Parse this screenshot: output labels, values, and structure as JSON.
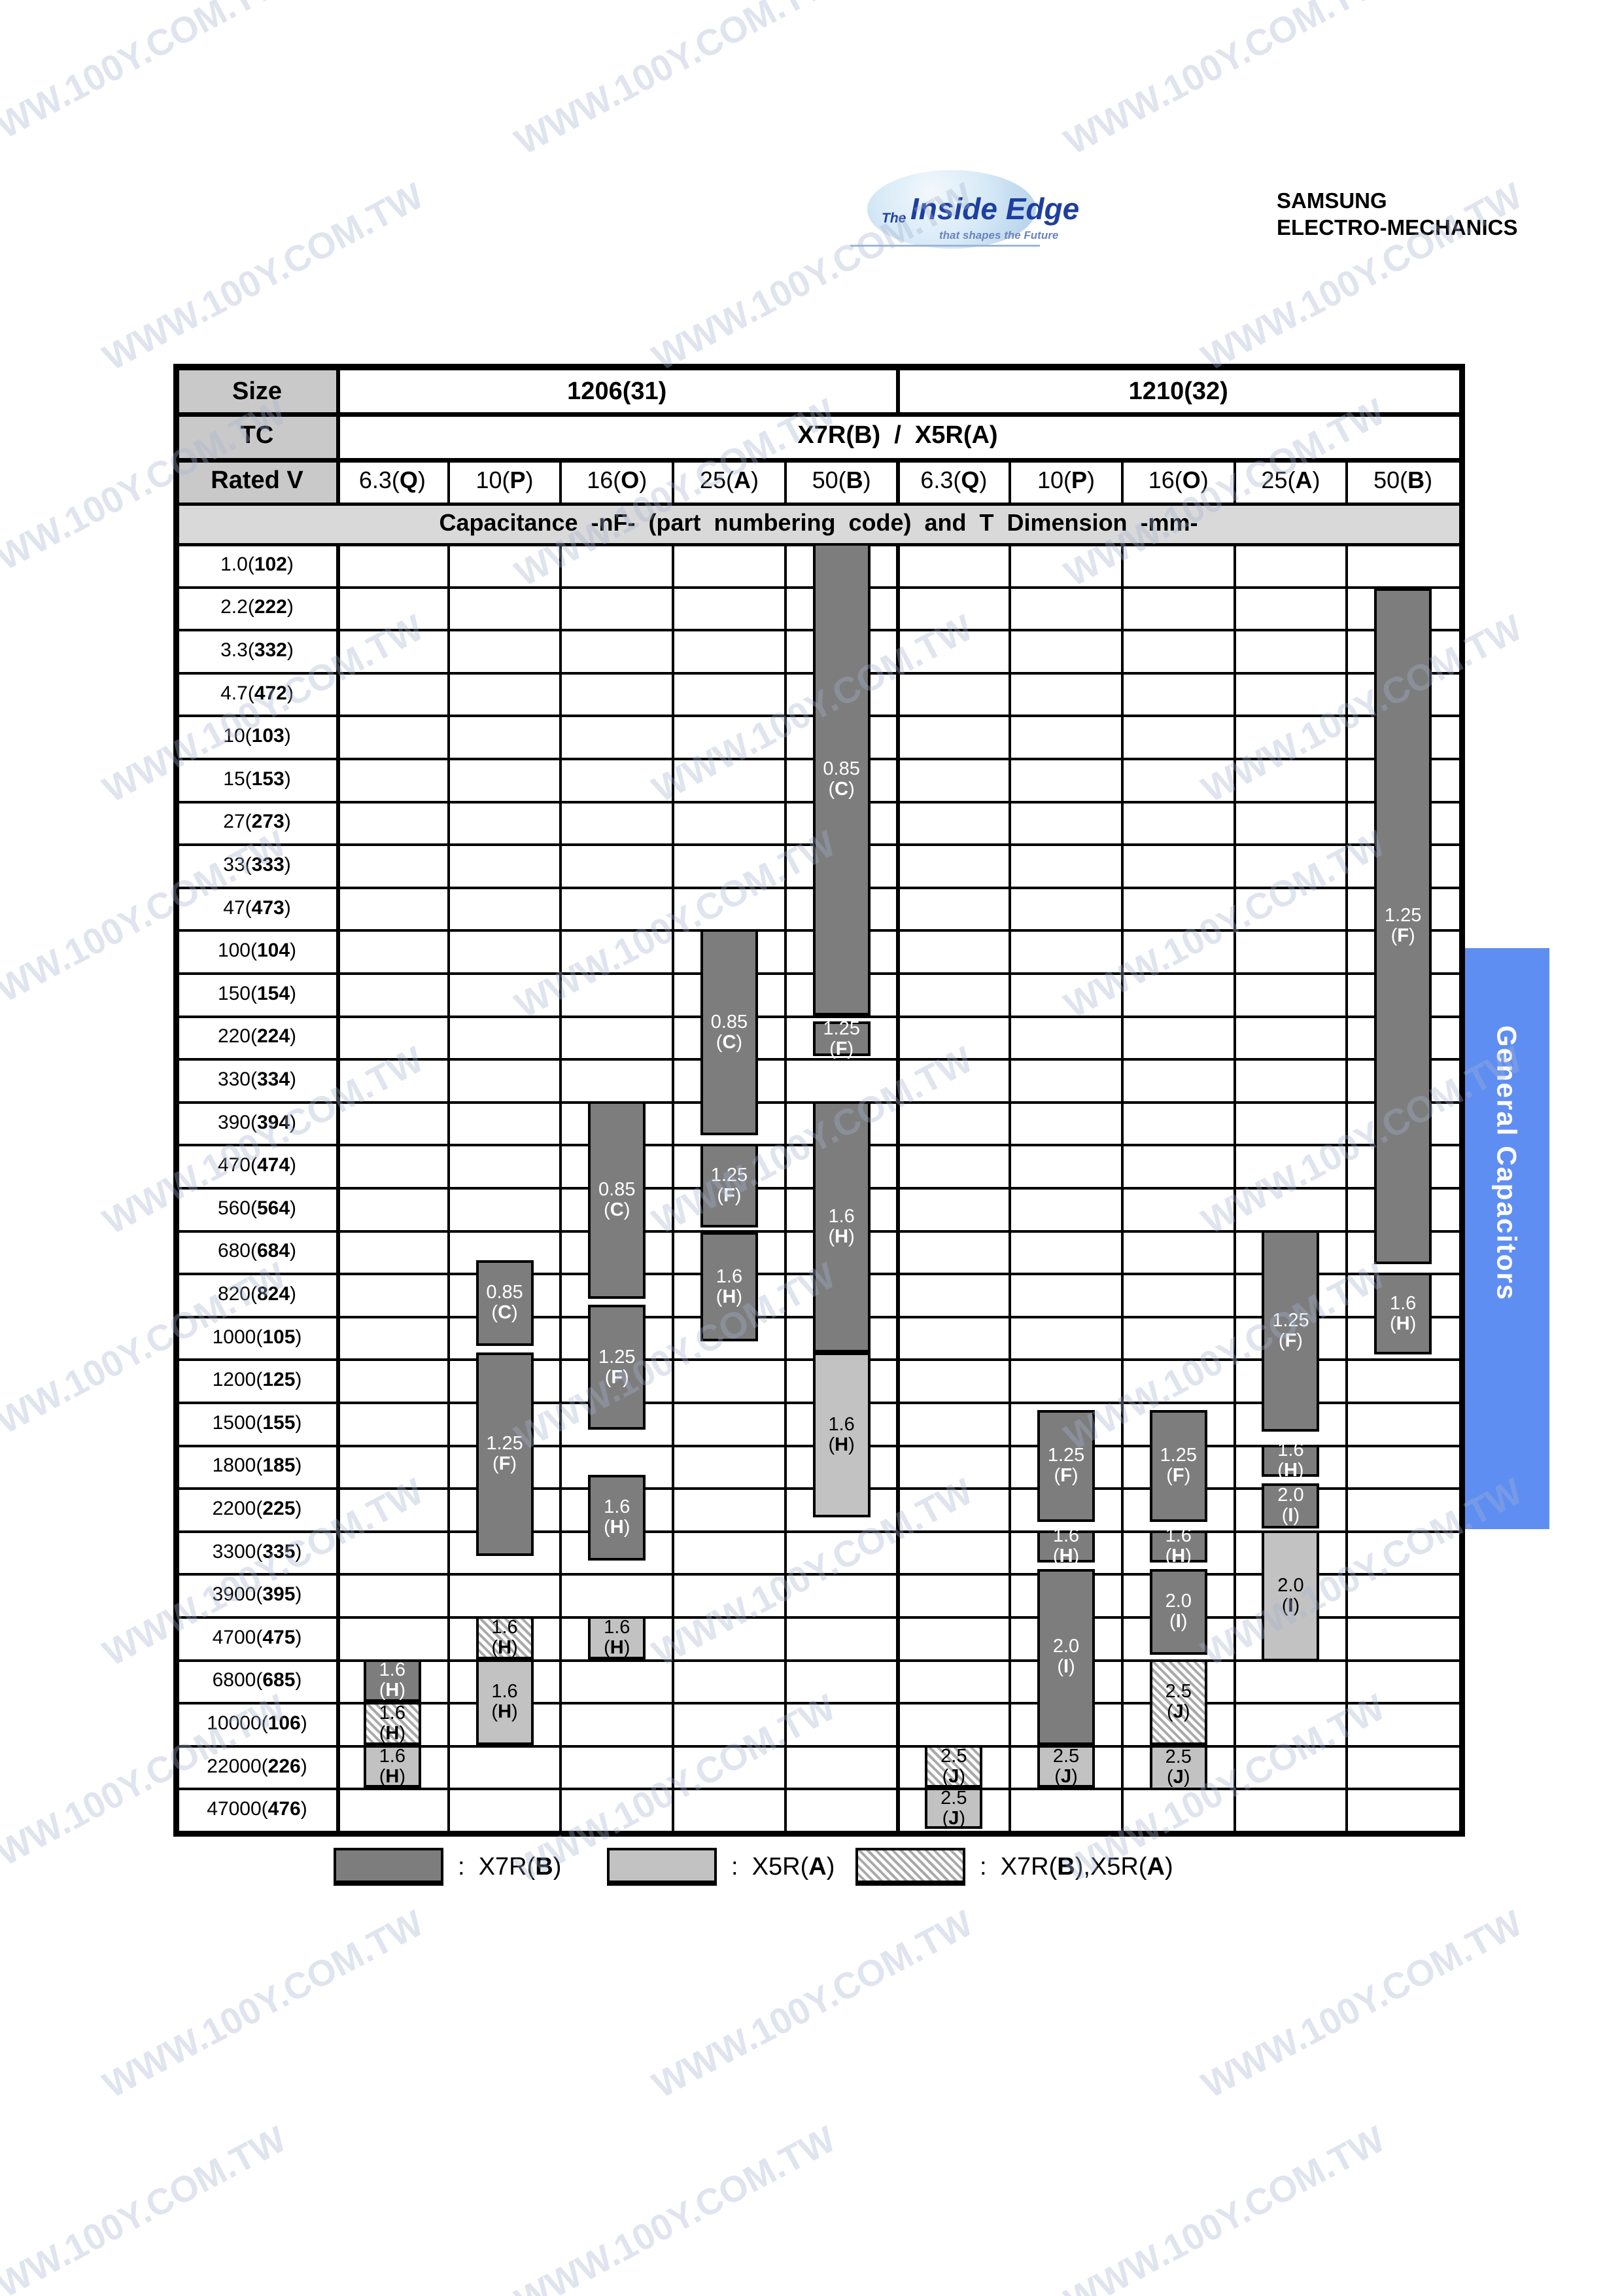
{
  "watermark": "WWW.100Y.COM.TW",
  "logos": {
    "inside_edge_the": "The",
    "inside_edge_main": "Inside Edge",
    "inside_edge_sub": "that shapes the Future",
    "samsung_oval": "SAMSUNG",
    "samsung_line1": "SAMSUNG",
    "samsung_line2": "ELECTRO-MECHANICS"
  },
  "sidebar": {
    "text": "General Capacitors",
    "color": "#5f8ef3"
  },
  "colors": {
    "dark_bar": "#7d7d7d",
    "light_bar": "#c2c2c2",
    "hatch_stripe": "#a9a9a9",
    "hatch_bg": "#fdfdfd",
    "grid": "#000000",
    "header_gray": "#c9c9c9",
    "banner_gray": "#d9d9d9",
    "samsung_blue": "#1c3a96",
    "oval_blue": "#2546a5",
    "watermark": "rgba(164,178,206,0.35)"
  },
  "table": {
    "size_label": "Size",
    "tc_label": "TC",
    "rated_v_label": "Rated  V",
    "banner": "Capacitance -nF- (part numbering code) and T Dimension -mm-",
    "sizes": [
      {
        "name": "1206",
        "code": "31"
      },
      {
        "name": "1210",
        "code": "32"
      }
    ],
    "tc": {
      "items": [
        {
          "t": "X7R",
          "c": "B"
        },
        {
          "t": "X5R",
          "c": "A"
        }
      ],
      "sep": "/"
    },
    "voltages": [
      {
        "v": "6.3",
        "c": "Q"
      },
      {
        "v": "10",
        "c": "P"
      },
      {
        "v": "16",
        "c": "O"
      },
      {
        "v": "25",
        "c": "A"
      },
      {
        "v": "50",
        "c": "B"
      },
      {
        "v": "6.3",
        "c": "Q"
      },
      {
        "v": "10",
        "c": "P"
      },
      {
        "v": "16",
        "c": "O"
      },
      {
        "v": "25",
        "c": "A"
      },
      {
        "v": "50",
        "c": "B"
      }
    ],
    "rows": [
      {
        "v": "1.0",
        "c": "102"
      },
      {
        "v": "2.2",
        "c": "222"
      },
      {
        "v": "3.3",
        "c": "332"
      },
      {
        "v": "4.7",
        "c": "472"
      },
      {
        "v": "10",
        "c": "103"
      },
      {
        "v": "15",
        "c": "153"
      },
      {
        "v": "27",
        "c": "273"
      },
      {
        "v": "33",
        "c": "333"
      },
      {
        "v": "47",
        "c": "473"
      },
      {
        "v": "100",
        "c": "104"
      },
      {
        "v": "150",
        "c": "154"
      },
      {
        "v": "220",
        "c": "224"
      },
      {
        "v": "330",
        "c": "334"
      },
      {
        "v": "390",
        "c": "394"
      },
      {
        "v": "470",
        "c": "474"
      },
      {
        "v": "560",
        "c": "564"
      },
      {
        "v": "680",
        "c": "684"
      },
      {
        "v": "820",
        "c": "824"
      },
      {
        "v": "1000",
        "c": "105"
      },
      {
        "v": "1200",
        "c": "125"
      },
      {
        "v": "1500",
        "c": "155"
      },
      {
        "v": "1800",
        "c": "185"
      },
      {
        "v": "2200",
        "c": "225"
      },
      {
        "v": "3300",
        "c": "335"
      },
      {
        "v": "3900",
        "c": "395"
      },
      {
        "v": "4700",
        "c": "475"
      },
      {
        "v": "6800",
        "c": "685"
      },
      {
        "v": "10000",
        "c": "106"
      },
      {
        "v": "22000",
        "c": "226"
      },
      {
        "v": "47000",
        "c": "476"
      }
    ],
    "bars": [
      {
        "col": 0,
        "style": "dark",
        "t": "1.6",
        "c": "H",
        "s": 26.0,
        "e": 27.0
      },
      {
        "col": 0,
        "style": "hatch",
        "t": "1.6",
        "c": "H",
        "s": 27.0,
        "e": 28.0
      },
      {
        "col": 0,
        "style": "light",
        "t": "1.6",
        "c": "H",
        "s": 28.0,
        "e": 29.0
      },
      {
        "col": 1,
        "style": "dark",
        "t": "0.85",
        "c": "C",
        "s": 16.7,
        "e": 18.7
      },
      {
        "col": 1,
        "style": "dark",
        "t": "1.25",
        "c": "F",
        "s": 18.85,
        "e": 23.6
      },
      {
        "col": 1,
        "style": "hatch",
        "t": "1.6",
        "c": "H",
        "s": 25.0,
        "e": 26.0
      },
      {
        "col": 1,
        "style": "light",
        "t": "1.6",
        "c": "H",
        "s": 26.0,
        "e": 28.0
      },
      {
        "col": 2,
        "style": "dark",
        "t": "0.85",
        "c": "C",
        "s": 13.0,
        "e": 17.6
      },
      {
        "col": 2,
        "style": "dark",
        "t": "1.25",
        "c": "F",
        "s": 17.75,
        "e": 20.65
      },
      {
        "col": 2,
        "style": "dark",
        "t": "1.6",
        "c": "H",
        "s": 21.7,
        "e": 23.7
      },
      {
        "col": 2,
        "style": "light",
        "t": "1.6",
        "c": "H",
        "s": 25.0,
        "e": 26.0
      },
      {
        "col": 3,
        "style": "dark",
        "t": "0.85",
        "c": "C",
        "s": 9.0,
        "e": 13.8
      },
      {
        "col": 3,
        "style": "dark",
        "t": "1.25",
        "c": "F",
        "s": 14.0,
        "e": 15.95
      },
      {
        "col": 3,
        "style": "dark",
        "t": "1.6",
        "c": "H",
        "s": 16.05,
        "e": 18.6
      },
      {
        "col": 4,
        "style": "dark",
        "t": "0.85",
        "c": "C",
        "s": 0.0,
        "e": 11.0
      },
      {
        "col": 4,
        "style": "dark",
        "t": "1.25",
        "c": "F",
        "s": 11.15,
        "e": 11.95
      },
      {
        "col": 4,
        "style": "dark",
        "t": "1.6",
        "c": "H",
        "s": 13.0,
        "e": 18.85
      },
      {
        "col": 4,
        "style": "light",
        "t": "1.6",
        "c": "H",
        "s": 18.85,
        "e": 22.7
      },
      {
        "col": 5,
        "style": "hatch",
        "t": "2.5",
        "c": "J",
        "s": 28.0,
        "e": 29.0
      },
      {
        "col": 5,
        "style": "light",
        "t": "2.5",
        "c": "J",
        "s": 29.0,
        "e": 29.95
      },
      {
        "col": 6,
        "style": "dark",
        "t": "1.25",
        "c": "F",
        "s": 20.2,
        "e": 22.8
      },
      {
        "col": 6,
        "style": "dark",
        "t": "1.6",
        "c": "H",
        "s": 23.0,
        "e": 23.75
      },
      {
        "col": 6,
        "style": "dark",
        "t": "2.0",
        "c": "I",
        "s": 23.9,
        "e": 28.0
      },
      {
        "col": 6,
        "style": "light",
        "t": "2.5",
        "c": "J",
        "s": 28.0,
        "e": 29.0
      },
      {
        "col": 7,
        "style": "dark",
        "t": "1.25",
        "c": "F",
        "s": 20.2,
        "e": 22.8
      },
      {
        "col": 7,
        "style": "dark",
        "t": "1.6",
        "c": "H",
        "s": 23.0,
        "e": 23.75
      },
      {
        "col": 7,
        "style": "dark",
        "t": "2.0",
        "c": "I",
        "s": 23.9,
        "e": 25.9
      },
      {
        "col": 7,
        "style": "hatch",
        "t": "2.5",
        "c": "J",
        "s": 26.0,
        "e": 28.0
      },
      {
        "col": 7,
        "style": "light",
        "t": "2.5",
        "c": "J",
        "s": 28.0,
        "e": 29.05
      },
      {
        "col": 8,
        "style": "dark",
        "t": "1.25",
        "c": "F",
        "s": 16.0,
        "e": 20.7
      },
      {
        "col": 8,
        "style": "dark",
        "t": "1.6",
        "c": "H",
        "s": 21.0,
        "e": 21.75
      },
      {
        "col": 8,
        "style": "dark",
        "t": "2.0",
        "c": "I",
        "s": 21.9,
        "e": 22.95
      },
      {
        "col": 8,
        "style": "light",
        "t": "2.0",
        "c": "I",
        "s": 23.0,
        "e": 26.05
      },
      {
        "col": 9,
        "style": "dark",
        "t": "1.25",
        "c": "F",
        "s": 1.05,
        "e": 16.8
      },
      {
        "col": 9,
        "style": "dark",
        "t": "1.6",
        "c": "H",
        "s": 17.0,
        "e": 18.9
      }
    ]
  },
  "legend": [
    {
      "style": "dark",
      "parts": [
        {
          "t": "X7R",
          "c": "B"
        }
      ]
    },
    {
      "style": "light",
      "parts": [
        {
          "t": "X5R",
          "c": "A"
        }
      ]
    },
    {
      "style": "hatch",
      "parts": [
        {
          "t": "X7R",
          "c": "B"
        },
        {
          "t": "X5R",
          "c": "A"
        }
      ]
    }
  ]
}
